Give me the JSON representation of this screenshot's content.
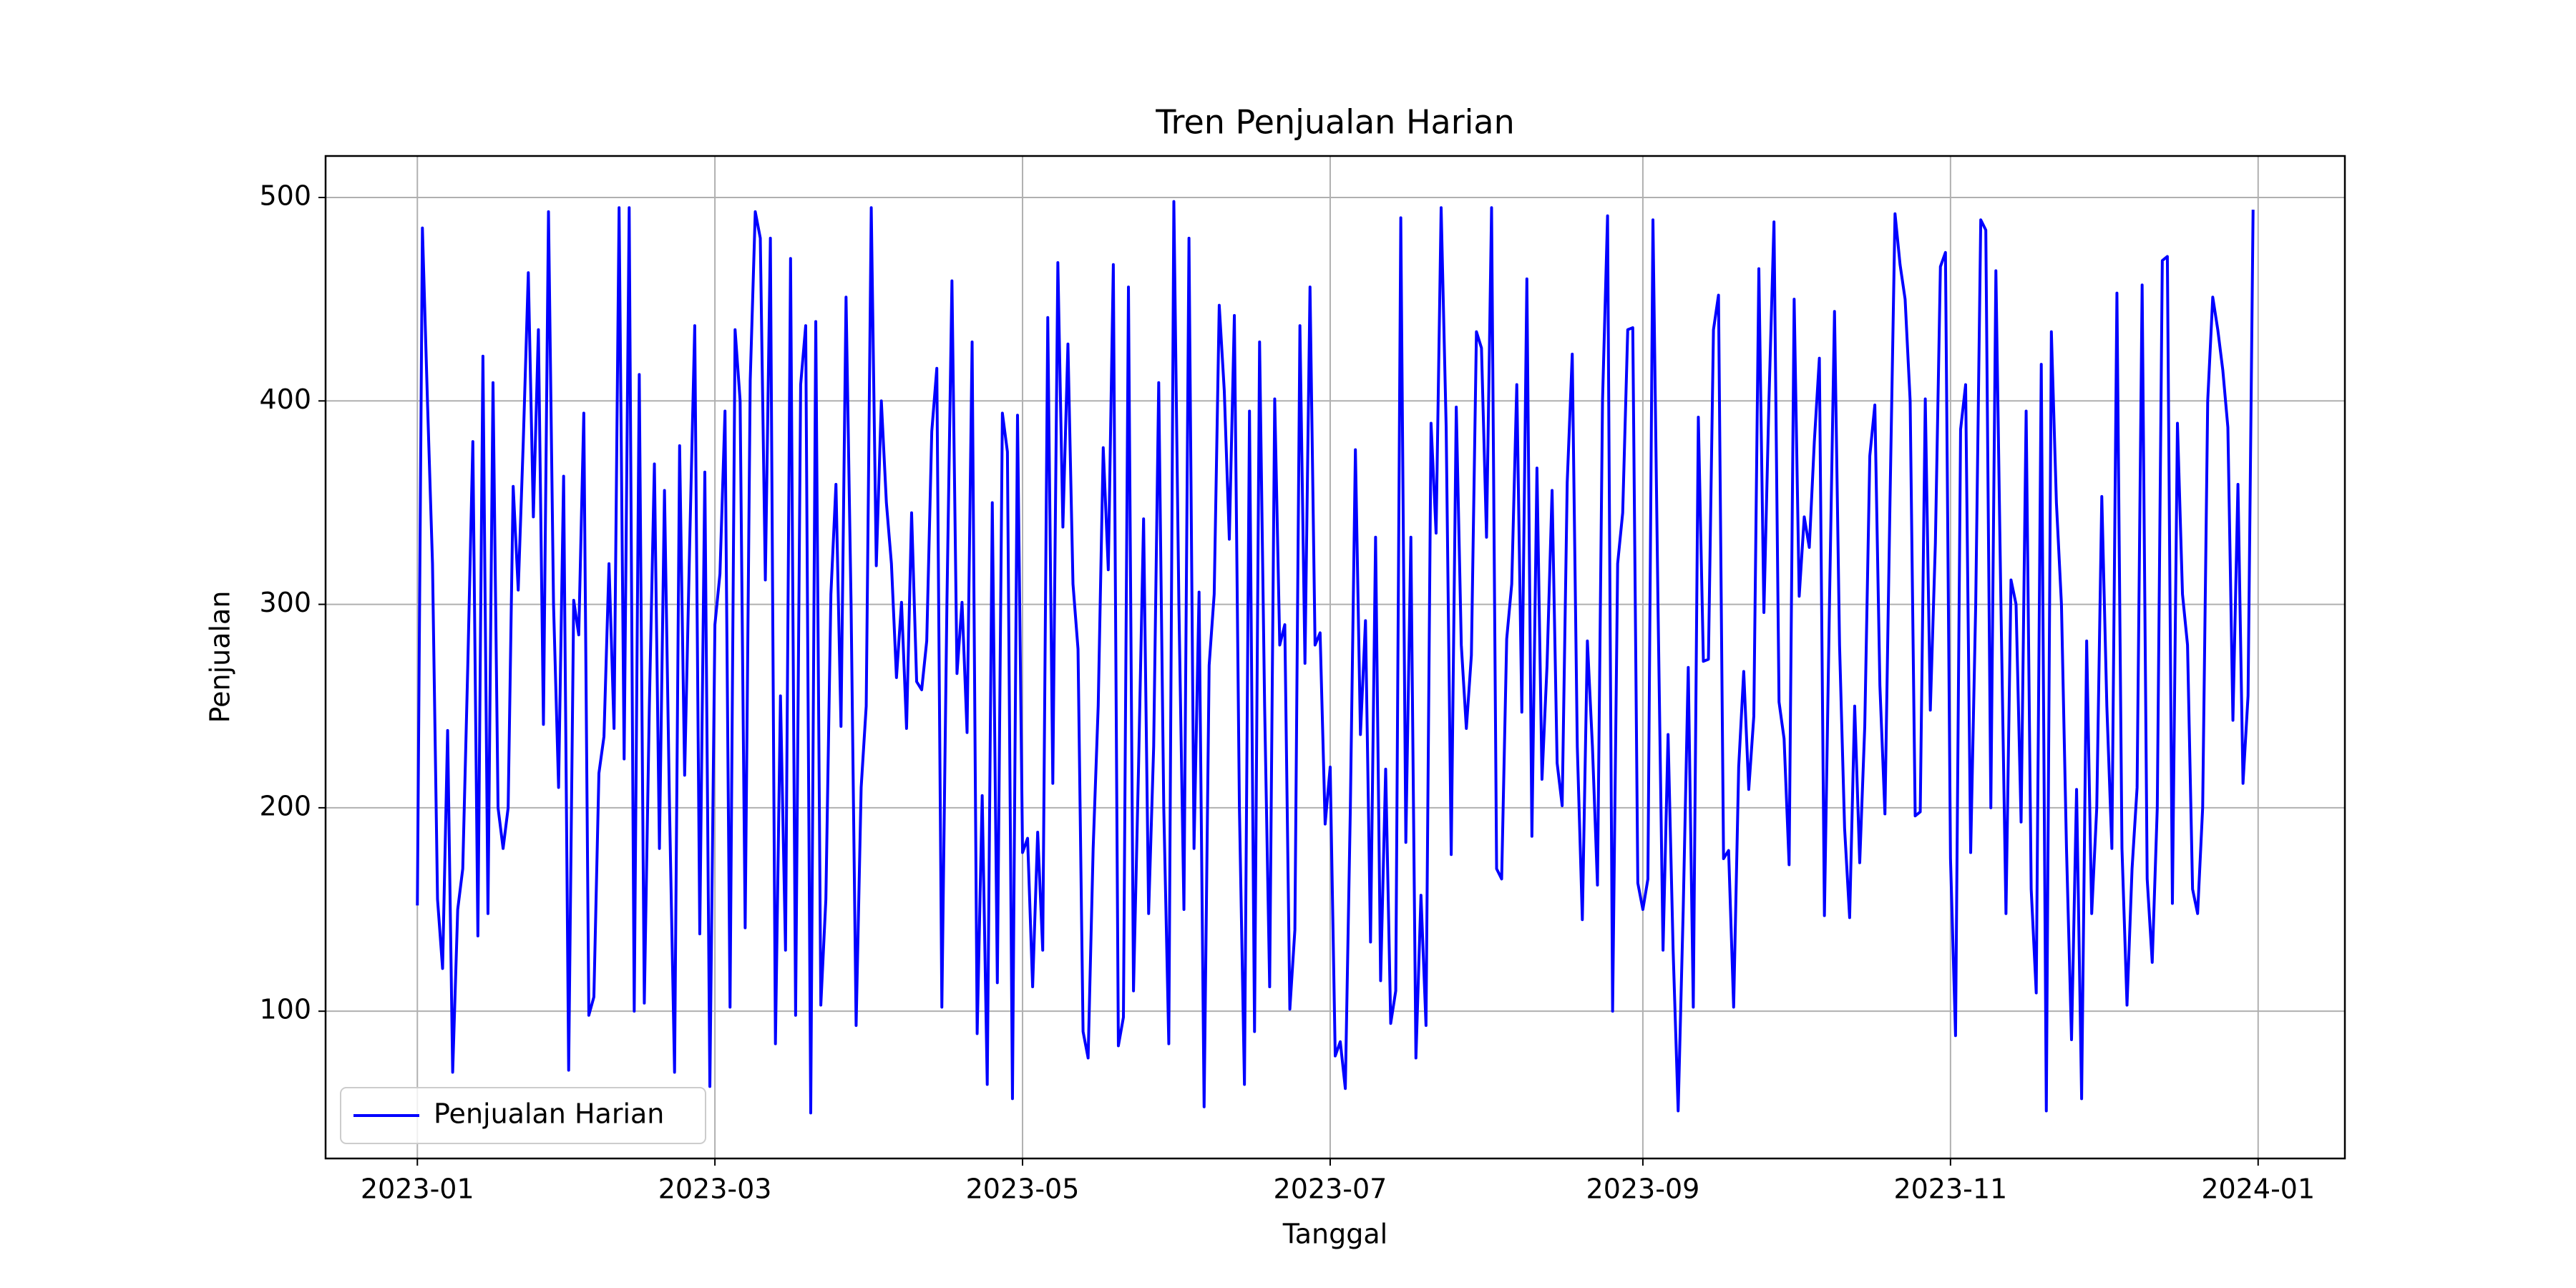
{
  "chart_data": {
    "type": "line",
    "title": "Tren Penjualan Harian",
    "xlabel": "Tanggal",
    "ylabel": "Penjualan",
    "x": [
      0,
      1,
      2,
      3,
      4,
      5,
      6,
      7,
      8,
      9,
      10,
      11,
      12,
      13,
      14,
      15,
      16,
      17,
      18,
      19,
      20,
      21,
      22,
      23,
      24,
      25,
      26,
      27,
      28,
      29,
      30,
      31,
      32,
      33,
      34,
      35,
      36,
      37,
      38,
      39,
      40,
      41,
      42,
      43,
      44,
      45,
      46,
      47,
      48,
      49,
      50,
      51,
      52,
      53,
      54,
      55,
      56,
      57,
      58,
      59,
      60,
      61,
      62,
      63,
      64,
      65,
      66,
      67,
      68,
      69,
      70,
      71,
      72,
      73,
      74,
      75,
      76,
      77,
      78,
      79,
      80,
      81,
      82,
      83,
      84,
      85,
      86,
      87,
      88,
      89,
      90,
      91,
      92,
      93,
      94,
      95,
      96,
      97,
      98,
      99,
      100,
      101,
      102,
      103,
      104,
      105,
      106,
      107,
      108,
      109,
      110,
      111,
      112,
      113,
      114,
      115,
      116,
      117,
      118,
      119,
      120,
      121,
      122,
      123,
      124,
      125,
      126,
      127,
      128,
      129,
      130,
      131,
      132,
      133,
      134,
      135,
      136,
      137,
      138,
      139,
      140,
      141,
      142,
      143,
      144,
      145,
      146,
      147,
      148,
      149,
      150,
      151,
      152,
      153,
      154,
      155,
      156,
      157,
      158,
      159,
      160,
      161,
      162,
      163,
      164,
      165,
      166,
      167,
      168,
      169,
      170,
      171,
      172,
      173,
      174,
      175,
      176,
      177,
      178,
      179,
      180,
      181,
      182,
      183,
      184,
      185,
      186,
      187,
      188,
      189,
      190,
      191,
      192,
      193,
      194,
      195,
      196,
      197,
      198,
      199,
      200,
      201,
      202,
      203,
      204,
      205,
      206,
      207,
      208,
      209,
      210,
      211,
      212,
      213,
      214,
      215,
      216,
      217,
      218,
      219,
      220,
      221,
      222,
      223,
      224,
      225,
      226,
      227,
      228,
      229,
      230,
      231,
      232,
      233,
      234,
      235,
      236,
      237,
      238,
      239,
      240,
      241,
      242,
      243,
      244,
      245,
      246,
      247,
      248,
      249,
      250,
      251,
      252,
      253,
      254,
      255,
      256,
      257,
      258,
      259,
      260,
      261,
      262,
      263,
      264,
      265,
      266,
      267,
      268,
      269,
      270,
      271,
      272,
      273,
      274,
      275,
      276,
      277,
      278,
      279,
      280,
      281,
      282,
      283,
      284,
      285,
      286,
      287,
      288,
      289,
      290,
      291,
      292,
      293,
      294,
      295,
      296,
      297,
      298,
      299,
      300,
      301,
      302,
      303,
      304,
      305,
      306,
      307,
      308,
      309,
      310,
      311,
      312,
      313,
      314,
      315,
      316,
      317,
      318,
      319,
      320,
      321,
      322,
      323,
      324,
      325,
      326,
      327,
      328,
      329,
      330,
      331,
      332,
      333,
      334,
      335,
      336,
      337,
      338,
      339,
      340,
      341,
      342,
      343,
      344,
      345,
      346,
      347,
      348,
      349,
      350,
      351,
      352,
      353,
      354,
      355,
      356,
      357,
      358,
      359,
      360,
      361,
      362,
      363,
      364
    ],
    "series": [
      {
        "name": "Penjualan Harian",
        "color": "#0000ff",
        "values": [
          152,
          485,
          400,
          320,
          155,
          121,
          238,
          70,
          150,
          170,
          270,
          380,
          137,
          422,
          148,
          409,
          200,
          180,
          200,
          358,
          307,
          380,
          463,
          343,
          435,
          241,
          493,
          300,
          210,
          363,
          71,
          302,
          285,
          394,
          98,
          107,
          217,
          235,
          320,
          239,
          495,
          224,
          495,
          100,
          413,
          104,
          250,
          369,
          180,
          356,
          200,
          70,
          378,
          216,
          330,
          437,
          138,
          365,
          63,
          290,
          315,
          395,
          102,
          435,
          400,
          141,
          410,
          493,
          480,
          312,
          480,
          84,
          255,
          130,
          470,
          98,
          408,
          437,
          50,
          439,
          103,
          155,
          305,
          359,
          240,
          451,
          300,
          93,
          210,
          250,
          495,
          319,
          400,
          350,
          320,
          264,
          301,
          239,
          345,
          262,
          258,
          282,
          385,
          416,
          102,
          300,
          459,
          266,
          301,
          237,
          429,
          89,
          206,
          64,
          350,
          114,
          394,
          375,
          57,
          393,
          178,
          185,
          112,
          188,
          130,
          441,
          212,
          468,
          338,
          428,
          310,
          278,
          90,
          77,
          180,
          250,
          377,
          317,
          467,
          83,
          97,
          456,
          110,
          220,
          342,
          148,
          230,
          409,
          200,
          84,
          498,
          300,
          150,
          480,
          180,
          306,
          53,
          270,
          305,
          447,
          405,
          332,
          442,
          200,
          64,
          395,
          90,
          429,
          250,
          112,
          401,
          280,
          290,
          101,
          140,
          437,
          271,
          456,
          280,
          286,
          192,
          220,
          78,
          85,
          62,
          200,
          376,
          236,
          292,
          134,
          333,
          115,
          219,
          94,
          110,
          490,
          183,
          333,
          77,
          157,
          93,
          389,
          335,
          495,
          387,
          177,
          397,
          280,
          239,
          275,
          434,
          426,
          333,
          495,
          170,
          165,
          283,
          310,
          408,
          247,
          460,
          186,
          367,
          214,
          270,
          356,
          222,
          201,
          360,
          423,
          230,
          145,
          282,
          230,
          162,
          400,
          491,
          100,
          320,
          345,
          435,
          436,
          163,
          150,
          165,
          489,
          300,
          130,
          236,
          130,
          51,
          150,
          269,
          102,
          392,
          272,
          273,
          435,
          452,
          175,
          179,
          102,
          220,
          267,
          209,
          245,
          465,
          296,
          400,
          488,
          252,
          234,
          172,
          450,
          304,
          343,
          328,
          380,
          421,
          147,
          300,
          444,
          280,
          190,
          146,
          250,
          173,
          240,
          373,
          398,
          260,
          197,
          350,
          492,
          467,
          450,
          400,
          196,
          198,
          401,
          248,
          330,
          466,
          473,
          175,
          88,
          386,
          408,
          178,
          300,
          489,
          484,
          200,
          464,
          300,
          148,
          312,
          300,
          193,
          395,
          160,
          109,
          418,
          51,
          434,
          350,
          300,
          180,
          86,
          209,
          57,
          282,
          148,
          200,
          353,
          250,
          180,
          453,
          180,
          103,
          170,
          210,
          457,
          165,
          124,
          200,
          469,
          471,
          153,
          389,
          305,
          280,
          160,
          148,
          200,
          400,
          451,
          435,
          415,
          387,
          243,
          359,
          212,
          255,
          494
        ]
      }
    ],
    "xlim": [
      -18.2,
      382.2
    ],
    "ylim": [
      27.6,
      520.4
    ],
    "xticks": [
      {
        "value": 0,
        "label": "2023-01"
      },
      {
        "value": 59,
        "label": "2023-03"
      },
      {
        "value": 120,
        "label": "2023-05"
      },
      {
        "value": 181,
        "label": "2023-07"
      },
      {
        "value": 243,
        "label": "2023-09"
      },
      {
        "value": 304,
        "label": "2023-11"
      },
      {
        "value": 365,
        "label": "2024-01"
      }
    ],
    "yticks": [
      100,
      200,
      300,
      400,
      500
    ],
    "grid": true,
    "legend": "lower left"
  }
}
